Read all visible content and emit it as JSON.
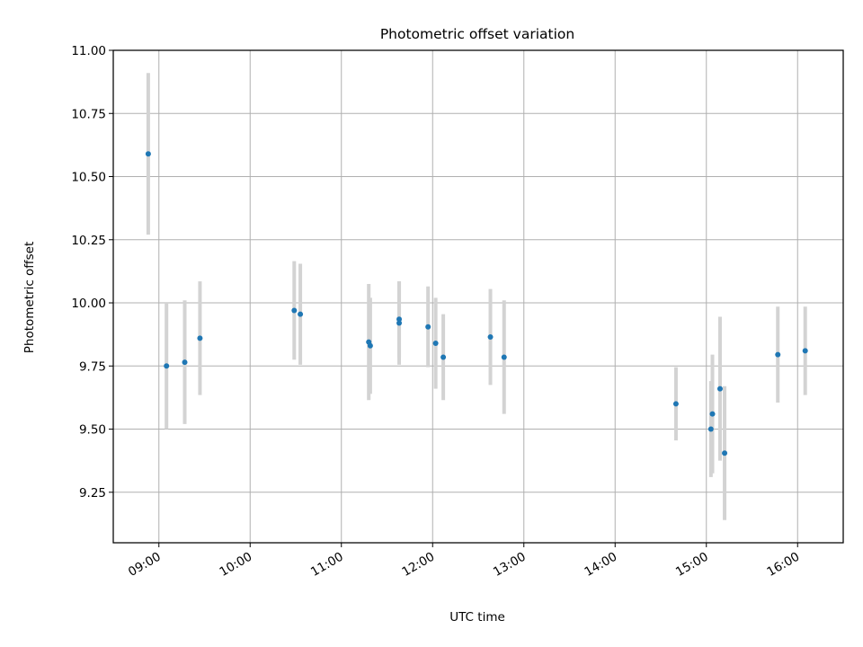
{
  "chart_data": {
    "type": "scatter",
    "title": "Photometric offset variation",
    "xlabel": "UTC time",
    "ylabel": "Photometric offset",
    "xlim": [
      "08:30",
      "16:30"
    ],
    "ylim": [
      9.05,
      11.0
    ],
    "x_ticks": [
      "09:00",
      "10:00",
      "11:00",
      "12:00",
      "13:00",
      "14:00",
      "15:00",
      "16:00"
    ],
    "y_ticks": [
      "9.25",
      "9.50",
      "9.75",
      "10.00",
      "10.25",
      "10.50",
      "10.75",
      "11.00"
    ],
    "grid": true,
    "legend": "none",
    "colors": {
      "points": "#1f77b4",
      "error_bars": "#d3d3d3",
      "grid": "#b0b0b0"
    },
    "series": [
      {
        "points": [
          {
            "x": "08:53",
            "y": 10.59,
            "err": 0.32
          },
          {
            "x": "09:05",
            "y": 9.75,
            "err": 0.25
          },
          {
            "x": "09:17",
            "y": 9.765,
            "err": 0.245
          },
          {
            "x": "09:27",
            "y": 9.86,
            "err": 0.225
          },
          {
            "x": "10:29",
            "y": 9.97,
            "err": 0.195
          },
          {
            "x": "10:33",
            "y": 9.955,
            "err": 0.2
          },
          {
            "x": "11:18",
            "y": 9.845,
            "err": 0.23
          },
          {
            "x": "11:19",
            "y": 9.83,
            "err": 0.19
          },
          {
            "x": "11:38",
            "y": 9.935,
            "err": 0.15
          },
          {
            "x": "11:38",
            "y": 9.92,
            "err": 0.165
          },
          {
            "x": "11:57",
            "y": 9.905,
            "err": 0.16
          },
          {
            "x": "12:02",
            "y": 9.84,
            "err": 0.18
          },
          {
            "x": "12:07",
            "y": 9.785,
            "err": 0.17
          },
          {
            "x": "12:38",
            "y": 9.865,
            "err": 0.19
          },
          {
            "x": "12:47",
            "y": 9.785,
            "err": 0.225
          },
          {
            "x": "14:40",
            "y": 9.6,
            "err": 0.145
          },
          {
            "x": "15:03",
            "y": 9.5,
            "err": 0.19
          },
          {
            "x": "15:04",
            "y": 9.56,
            "err": 0.235
          },
          {
            "x": "15:09",
            "y": 9.66,
            "err": 0.285
          },
          {
            "x": "15:12",
            "y": 9.405,
            "err": 0.265
          },
          {
            "x": "15:47",
            "y": 9.795,
            "err": 0.19
          },
          {
            "x": "16:05",
            "y": 9.81,
            "err": 0.175
          }
        ]
      }
    ]
  }
}
